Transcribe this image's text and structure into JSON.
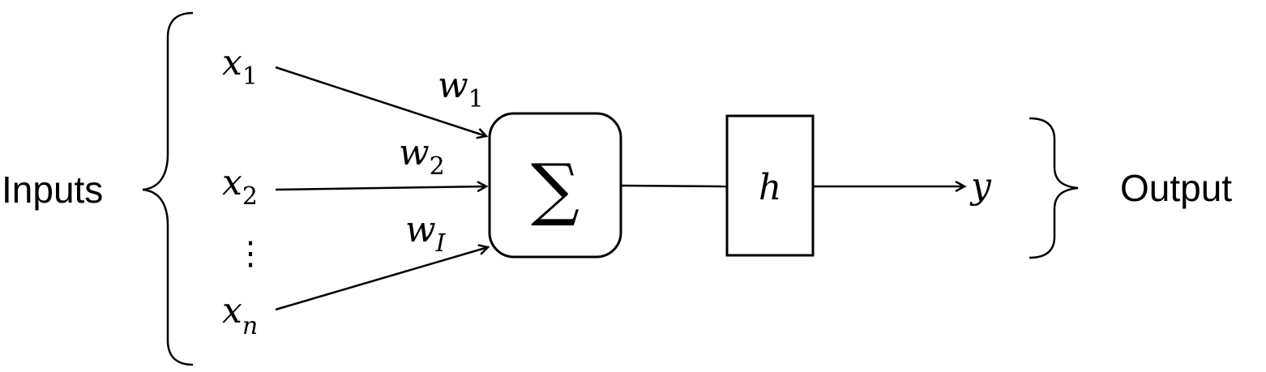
{
  "labels": {
    "inputs": "Inputs",
    "output": "Output"
  },
  "inputs": [
    {
      "symbol": "x",
      "subscript": "1"
    },
    {
      "symbol": "x",
      "subscript": "2"
    },
    {
      "symbol": "x",
      "subscript": "n"
    }
  ],
  "ellipsis": "⋮",
  "weights": [
    {
      "symbol": "w",
      "subscript": "1"
    },
    {
      "symbol": "w",
      "subscript": "2"
    },
    {
      "symbol": "w",
      "subscript": "I"
    }
  ],
  "summation": "∑",
  "activation": "h",
  "output_symbol": "y"
}
